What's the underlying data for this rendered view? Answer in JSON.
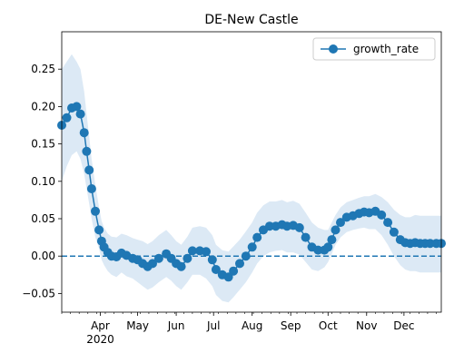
{
  "chart_data": {
    "type": "line",
    "title": "DE-New Castle",
    "xlabel": "",
    "ylabel": "",
    "x_ticks": [
      {
        "date": "2020-04-01",
        "label": "Apr",
        "sublabel": "2020"
      },
      {
        "date": "2020-05-01",
        "label": "May"
      },
      {
        "date": "2020-06-01",
        "label": "Jun"
      },
      {
        "date": "2020-07-01",
        "label": "Jul"
      },
      {
        "date": "2020-08-01",
        "label": "Aug"
      },
      {
        "date": "2020-09-01",
        "label": "Sep"
      },
      {
        "date": "2020-10-01",
        "label": "Oct"
      },
      {
        "date": "2020-11-01",
        "label": "Nov"
      },
      {
        "date": "2020-12-01",
        "label": "Dec"
      }
    ],
    "xlim": [
      "2020-03-01",
      "2020-12-31"
    ],
    "ylim": [
      -0.075,
      0.3
    ],
    "y_ticks": [
      -0.05,
      0.0,
      0.05,
      0.1,
      0.15,
      0.2,
      0.25
    ],
    "y_tick_labels": [
      "−0.05",
      "0.00",
      "0.05",
      "0.10",
      "0.15",
      "0.20",
      "0.25"
    ],
    "legend": {
      "position": "upper-right"
    },
    "reference_line": {
      "y": 0.0,
      "style": "dashed"
    },
    "colors": {
      "series": "#1f77b4",
      "band": "#dce9f5"
    },
    "series": [
      {
        "name": "growth_rate",
        "marker": "circle",
        "x": [
          "2020-03-01",
          "2020-03-05",
          "2020-03-09",
          "2020-03-13",
          "2020-03-16",
          "2020-03-19",
          "2020-03-21",
          "2020-03-23",
          "2020-03-25",
          "2020-03-28",
          "2020-03-31",
          "2020-04-02",
          "2020-04-04",
          "2020-04-07",
          "2020-04-10",
          "2020-04-14",
          "2020-04-18",
          "2020-04-22",
          "2020-04-27",
          "2020-05-01",
          "2020-05-05",
          "2020-05-09",
          "2020-05-13",
          "2020-05-18",
          "2020-05-24",
          "2020-05-28",
          "2020-06-01",
          "2020-06-05",
          "2020-06-10",
          "2020-06-14",
          "2020-06-20",
          "2020-06-25",
          "2020-06-30",
          "2020-07-03",
          "2020-07-08",
          "2020-07-13",
          "2020-07-17",
          "2020-07-22",
          "2020-07-27",
          "2020-08-01",
          "2020-08-05",
          "2020-08-10",
          "2020-08-15",
          "2020-08-20",
          "2020-08-25",
          "2020-08-29",
          "2020-09-03",
          "2020-09-08",
          "2020-09-13",
          "2020-09-18",
          "2020-09-23",
          "2020-09-28",
          "2020-10-01",
          "2020-10-04",
          "2020-10-07",
          "2020-10-11",
          "2020-10-16",
          "2020-10-21",
          "2020-10-26",
          "2020-10-30",
          "2020-11-03",
          "2020-11-08",
          "2020-11-13",
          "2020-11-18",
          "2020-11-23",
          "2020-11-28",
          "2020-12-02",
          "2020-12-06",
          "2020-12-10",
          "2020-12-14",
          "2020-12-18",
          "2020-12-22",
          "2020-12-27",
          "2020-12-31"
        ],
        "values": [
          0.175,
          0.185,
          0.198,
          0.2,
          0.19,
          0.165,
          0.14,
          0.115,
          0.09,
          0.06,
          0.035,
          0.02,
          0.012,
          0.005,
          0.0,
          -0.001,
          0.004,
          0.001,
          -0.003,
          -0.005,
          -0.01,
          -0.014,
          -0.01,
          -0.003,
          0.003,
          -0.003,
          -0.01,
          -0.014,
          -0.003,
          0.007,
          0.007,
          0.006,
          -0.005,
          -0.018,
          -0.025,
          -0.028,
          -0.02,
          -0.01,
          0.0,
          0.012,
          0.025,
          0.035,
          0.04,
          0.04,
          0.042,
          0.04,
          0.041,
          0.038,
          0.025,
          0.012,
          0.008,
          0.008,
          0.012,
          0.022,
          0.035,
          0.045,
          0.052,
          0.054,
          0.057,
          0.059,
          0.058,
          0.06,
          0.055,
          0.045,
          0.032,
          0.022,
          0.018,
          0.017,
          0.018,
          0.017,
          0.017,
          0.017,
          0.017,
          0.017
        ],
        "lower": [
          0.1,
          0.12,
          0.135,
          0.14,
          0.13,
          0.11,
          0.09,
          0.07,
          0.05,
          0.025,
          0.01,
          -0.005,
          -0.012,
          -0.02,
          -0.025,
          -0.028,
          -0.022,
          -0.027,
          -0.03,
          -0.035,
          -0.04,
          -0.045,
          -0.042,
          -0.035,
          -0.028,
          -0.033,
          -0.04,
          -0.045,
          -0.035,
          -0.025,
          -0.025,
          -0.03,
          -0.04,
          -0.052,
          -0.06,
          -0.062,
          -0.055,
          -0.045,
          -0.035,
          -0.022,
          -0.01,
          0.0,
          0.005,
          0.007,
          0.008,
          0.005,
          0.005,
          0.002,
          -0.008,
          -0.018,
          -0.02,
          -0.015,
          -0.008,
          0.003,
          0.015,
          0.025,
          0.032,
          0.035,
          0.037,
          0.038,
          0.036,
          0.036,
          0.028,
          0.015,
          0.0,
          -0.012,
          -0.018,
          -0.02,
          -0.02,
          -0.022,
          -0.022,
          -0.022,
          -0.022,
          -0.022
        ],
        "upper": [
          0.25,
          0.26,
          0.27,
          0.26,
          0.25,
          0.22,
          0.19,
          0.16,
          0.13,
          0.095,
          0.065,
          0.047,
          0.038,
          0.03,
          0.026,
          0.025,
          0.03,
          0.028,
          0.024,
          0.022,
          0.02,
          0.016,
          0.02,
          0.028,
          0.035,
          0.028,
          0.02,
          0.015,
          0.026,
          0.038,
          0.04,
          0.038,
          0.028,
          0.015,
          0.008,
          0.006,
          0.013,
          0.022,
          0.033,
          0.045,
          0.058,
          0.068,
          0.073,
          0.073,
          0.075,
          0.072,
          0.074,
          0.07,
          0.058,
          0.045,
          0.038,
          0.035,
          0.035,
          0.045,
          0.055,
          0.065,
          0.072,
          0.075,
          0.078,
          0.08,
          0.08,
          0.083,
          0.079,
          0.072,
          0.062,
          0.055,
          0.052,
          0.052,
          0.055,
          0.054,
          0.054,
          0.054,
          0.054,
          0.054
        ]
      }
    ]
  }
}
